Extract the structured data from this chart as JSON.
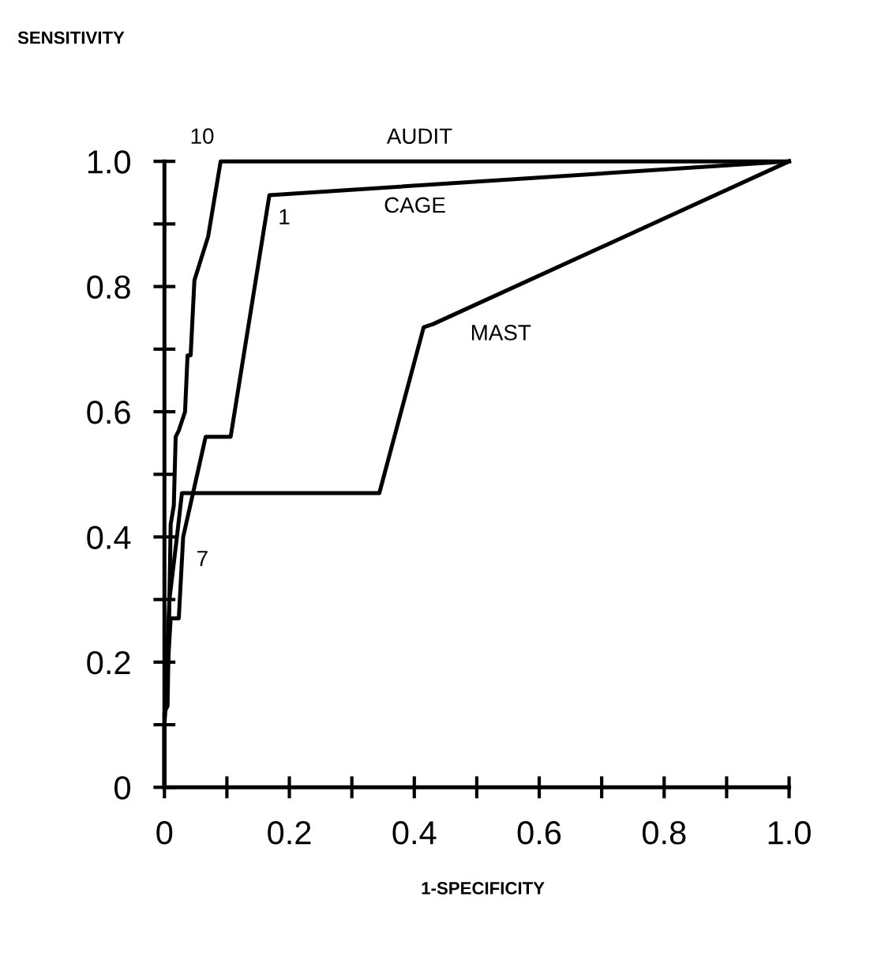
{
  "chart_data": {
    "type": "line",
    "xlabel": "1-SPECIFICITY",
    "series": [
      {
        "name": "AUDIT",
        "color": "#000000",
        "x": [
          0,
          0,
          0.005,
          0.01,
          0.015,
          0.018,
          0.023,
          0.033,
          0.037,
          0.042,
          0.048,
          0.07,
          0.09,
          1.0
        ],
        "values": [
          0,
          0.12,
          0.13,
          0.42,
          0.45,
          0.56,
          0.57,
          0.6,
          0.69,
          0.69,
          0.81,
          0.88,
          1.0,
          1.0
        ]
      },
      {
        "name": "CAGE",
        "color": "#000000",
        "x": [
          0,
          0,
          0.01,
          0.023,
          0.03,
          0.066,
          0.106,
          0.168,
          1.0
        ],
        "values": [
          0,
          0.1,
          0.27,
          0.27,
          0.4,
          0.56,
          0.56,
          0.946,
          1.0
        ]
      },
      {
        "name": "MAST",
        "color": "#000000",
        "x": [
          0,
          0,
          0.008,
          0.02,
          0.028,
          0.344,
          0.415,
          0.43,
          1.0
        ],
        "values": [
          0,
          0.1,
          0.3,
          0.4,
          0.47,
          0.47,
          0.735,
          0.74,
          1.0
        ]
      }
    ],
    "annotations": [
      "SENSITIVITY",
      {
        "text": "10",
        "x": 0.09,
        "y": 1.0
      },
      {
        "text": "1",
        "x": 0.168,
        "y": 0.946
      },
      {
        "text": "7",
        "x": 0.03,
        "y": 0.4
      }
    ],
    "xlim": [
      0,
      1.0
    ],
    "ylim": [
      0,
      1.0
    ],
    "xticks": [
      0,
      {
        "value": 0.1,
        "label": null
      },
      0.2,
      {
        "value": 0.3,
        "label": null
      },
      0.4,
      {
        "value": 0.5,
        "label": null
      },
      0.6,
      {
        "value": 0.7,
        "label": null
      },
      0.8,
      {
        "value": 0.9,
        "label": null
      },
      {
        "value": 1.0,
        "label": "1.0"
      }
    ],
    "yticks": [
      0,
      {
        "value": 0.1,
        "label": null
      },
      0.2,
      {
        "value": 0.3,
        "label": null
      },
      0.4,
      {
        "value": 0.5,
        "label": null
      },
      0.6,
      {
        "value": 0.7,
        "label": null
      },
      0.8,
      {
        "value": 0.9,
        "label": null
      },
      {
        "value": 1.0,
        "label": "1.0"
      }
    ],
    "grid": false,
    "legend": false,
    "marker": "none",
    "line_style": "solid"
  }
}
